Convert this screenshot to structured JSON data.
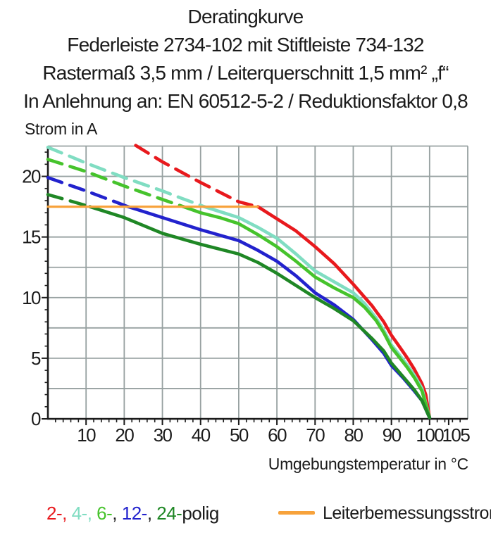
{
  "title": {
    "lines": [
      "Deratingkurve",
      "Federleiste 2734-102 mit Stiftleiste 734-132",
      "Rastermaß 3,5 mm / Leiterquerschnitt 1,5 mm² „f“",
      "In Anlehnung an: EN 60512-5-2 / Reduktionsfaktor 0,8"
    ]
  },
  "chart_data": {
    "type": "line",
    "title": "Deratingkurve",
    "xlabel": "Umgebungstemperatur in °C",
    "ylabel": "Strom in A",
    "xlim": [
      0,
      110
    ],
    "ylim": [
      0,
      22.5
    ],
    "x_major_ticks": [
      10,
      20,
      30,
      40,
      50,
      60,
      70,
      80,
      90,
      100,
      105
    ],
    "x_minor_step": 2,
    "y_major_ticks": [
      0,
      5,
      10,
      15,
      20
    ],
    "y_minor_step": 1,
    "grid": {
      "x_step": 10,
      "y_step": 2.5,
      "color": "#97a1a1"
    },
    "axis_color": "#1b1b1b",
    "rated_current_A": 17.5,
    "series": [
      {
        "name": "2-polig",
        "color": "#e8191d",
        "dashed_until_x": 55,
        "points": [
          [
            23,
            22.55
          ],
          [
            30,
            21.2
          ],
          [
            40,
            19.5
          ],
          [
            50,
            17.9
          ],
          [
            55,
            17.5
          ],
          [
            60,
            16.5
          ],
          [
            65,
            15.5
          ],
          [
            70,
            14.2
          ],
          [
            75,
            12.8
          ],
          [
            80,
            11.1
          ],
          [
            85,
            9.3
          ],
          [
            88,
            8.0
          ],
          [
            90,
            6.9
          ],
          [
            92,
            6.0
          ],
          [
            94,
            5.1
          ],
          [
            96,
            4.1
          ],
          [
            98,
            2.9
          ],
          [
            99,
            2.0
          ],
          [
            100,
            0.1
          ]
        ]
      },
      {
        "name": "4-polig",
        "color": "#80ddc2",
        "dashed_until_x": 41,
        "points": [
          [
            0,
            22.4
          ],
          [
            10,
            21.1
          ],
          [
            20,
            19.9
          ],
          [
            30,
            18.8
          ],
          [
            35,
            18.2
          ],
          [
            41,
            17.5
          ],
          [
            45,
            17.1
          ],
          [
            50,
            16.6
          ],
          [
            55,
            15.8
          ],
          [
            60,
            14.9
          ],
          [
            65,
            13.6
          ],
          [
            70,
            12.2
          ],
          [
            75,
            11.3
          ],
          [
            80,
            10.4
          ],
          [
            83,
            9.5
          ],
          [
            86,
            8.3
          ],
          [
            88,
            7.3
          ],
          [
            90,
            6.1
          ],
          [
            92,
            5.3
          ],
          [
            94,
            4.5
          ],
          [
            96,
            3.6
          ],
          [
            98,
            2.5
          ],
          [
            100,
            0.1
          ]
        ]
      },
      {
        "name": "6-polig",
        "color": "#46c32c",
        "dashed_until_x": 35.5,
        "points": [
          [
            0,
            21.4
          ],
          [
            10,
            20.4
          ],
          [
            20,
            19.2
          ],
          [
            30,
            18.1
          ],
          [
            35.5,
            17.5
          ],
          [
            40,
            17.0
          ],
          [
            45,
            16.6
          ],
          [
            50,
            16.1
          ],
          [
            55,
            15.2
          ],
          [
            60,
            14.2
          ],
          [
            65,
            13.0
          ],
          [
            70,
            11.7
          ],
          [
            75,
            10.8
          ],
          [
            80,
            10.0
          ],
          [
            83,
            9.2
          ],
          [
            86,
            8.1
          ],
          [
            88,
            7.1
          ],
          [
            90,
            5.9
          ],
          [
            92,
            5.1
          ],
          [
            94,
            4.3
          ],
          [
            96,
            3.4
          ],
          [
            98,
            2.3
          ],
          [
            100,
            0.1
          ]
        ]
      },
      {
        "name": "12-polig",
        "color": "#2222cd",
        "dashed_until_x": 21,
        "points": [
          [
            0,
            19.9
          ],
          [
            10,
            18.8
          ],
          [
            21,
            17.5
          ],
          [
            30,
            16.6
          ],
          [
            40,
            15.6
          ],
          [
            50,
            14.7
          ],
          [
            55,
            13.9
          ],
          [
            60,
            13.0
          ],
          [
            65,
            11.8
          ],
          [
            70,
            10.4
          ],
          [
            75,
            9.4
          ],
          [
            80,
            8.2
          ],
          [
            85,
            6.5
          ],
          [
            88,
            5.4
          ],
          [
            90,
            4.4
          ],
          [
            93,
            3.4
          ],
          [
            96,
            2.3
          ],
          [
            98,
            1.5
          ],
          [
            100,
            0.1
          ]
        ]
      },
      {
        "name": "24-polig",
        "color": "#1f8725",
        "dashed_until_x": 11,
        "points": [
          [
            0,
            18.5
          ],
          [
            5,
            18.05
          ],
          [
            11,
            17.5
          ],
          [
            20,
            16.6
          ],
          [
            30,
            15.3
          ],
          [
            40,
            14.4
          ],
          [
            50,
            13.6
          ],
          [
            55,
            12.9
          ],
          [
            60,
            12.0
          ],
          [
            65,
            11.0
          ],
          [
            70,
            10.0
          ],
          [
            75,
            9.1
          ],
          [
            80,
            8.1
          ],
          [
            85,
            6.6
          ],
          [
            88,
            5.6
          ],
          [
            90,
            4.6
          ],
          [
            93,
            3.5
          ],
          [
            96,
            2.4
          ],
          [
            98,
            1.5
          ],
          [
            100,
            0.1
          ]
        ]
      },
      {
        "name": "Leiterbemessungsstrom",
        "color": "#f7a23b",
        "dashed_until_x": null,
        "width": 3.2,
        "points": [
          [
            0,
            17.5
          ],
          [
            55,
            17.5
          ]
        ]
      }
    ]
  },
  "legend": {
    "pole_spans": [
      {
        "text": "2-, ",
        "color": "#e8191d"
      },
      {
        "text": "4-, ",
        "color": "#80ddc2"
      },
      {
        "text": "6-",
        "color": "#46c32c"
      },
      {
        "text": ", ",
        "color": "#1b1b1b"
      },
      {
        "text": "12-",
        "color": "#2222cd"
      },
      {
        "text": ", ",
        "color": "#1b1b1b"
      },
      {
        "text": "24-",
        "color": "#1f8725"
      },
      {
        "text": "polig",
        "color": "#1b1b1b"
      }
    ],
    "rated": {
      "label": "Leiterbemessungsstrom",
      "color": "#f7a23b"
    }
  }
}
